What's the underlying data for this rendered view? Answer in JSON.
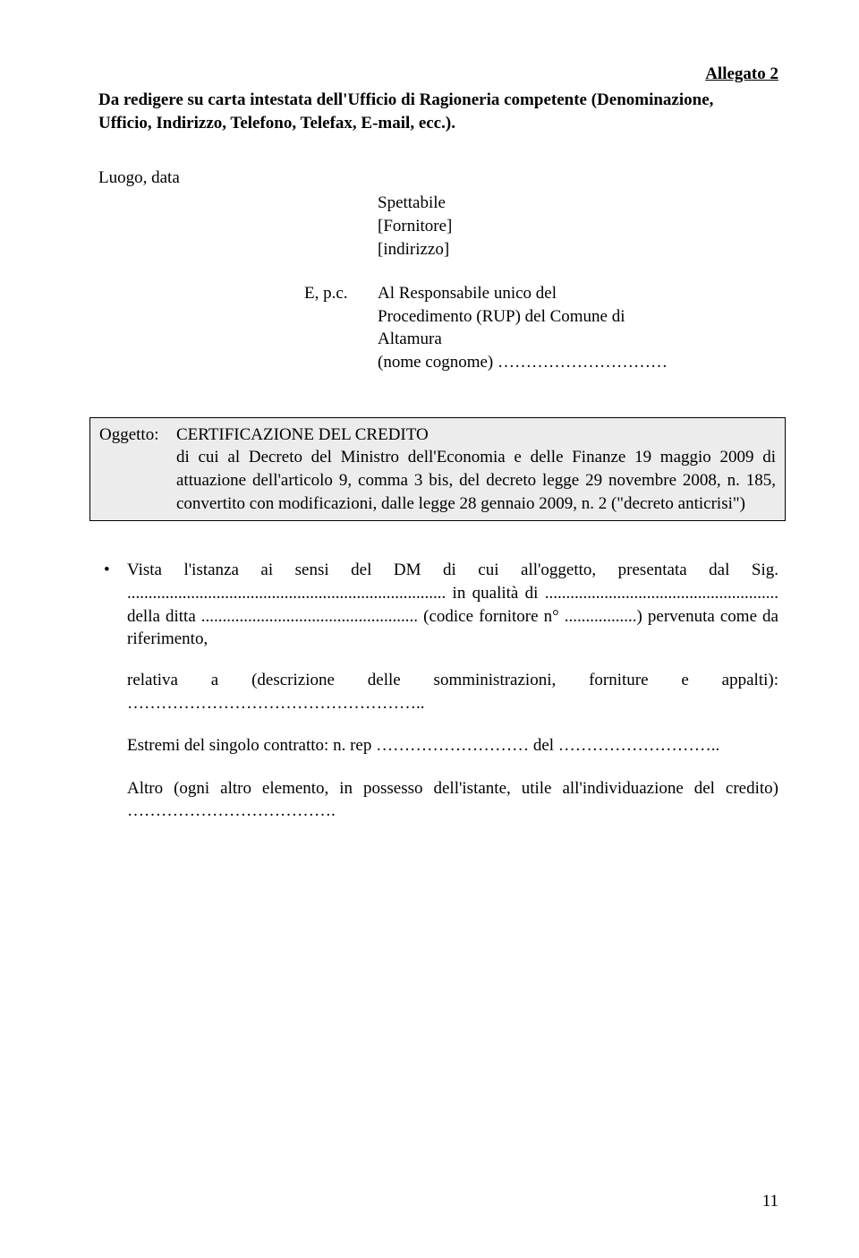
{
  "allegato": "Allegato 2",
  "header_line1": "Da redigere su carta intestata dell'Ufficio di Ragioneria competente (Denominazione,",
  "header_line2": "Ufficio, Indirizzo, Telefono, Telefax, E-mail, ecc.).",
  "luogo": "Luogo, data",
  "recipient_line1": "Spettabile",
  "recipient_line2": "[Fornitore]",
  "recipient_line3": "[indirizzo]",
  "epc_label": "E, p.c.",
  "epc_line1": "Al Responsabile unico del",
  "epc_line2": "Procedimento (RUP) del Comune di",
  "epc_line3": "Altamura",
  "epc_line4": "(nome cognome) …………………………",
  "oggetto_label": "Oggetto:",
  "oggetto_line1": "CERTIFICAZIONE DEL CREDITO",
  "oggetto_body": "di cui al Decreto del Ministro dell'Economia e delle Finanze 19 maggio 2009 di attuazione dell'articolo 9, comma 3 bis, del decreto legge 29 novembre 2008, n. 185, convertito con modificazioni, dalle legge 28 gennaio 2009, n. 2 (\"decreto anticrisi\")",
  "bullet_text": "Vista l'istanza ai sensi del DM di cui all'oggetto, presentata dal Sig. ........................................................................... in qualità di ....................................................... della ditta ................................................... (codice fornitore n° .................) pervenuta come da riferimento,",
  "para_relativa": "relativa a (descrizione delle somministrazioni, forniture e appalti): ……………………………………………..",
  "para_estremi": "Estremi del singolo contratto: n. rep ……………………… del ………………………..",
  "para_altro": "Altro (ogni altro elemento, in possesso dell'istante, utile all'individuazione del credito) ……………………………….",
  "page_number": "11"
}
